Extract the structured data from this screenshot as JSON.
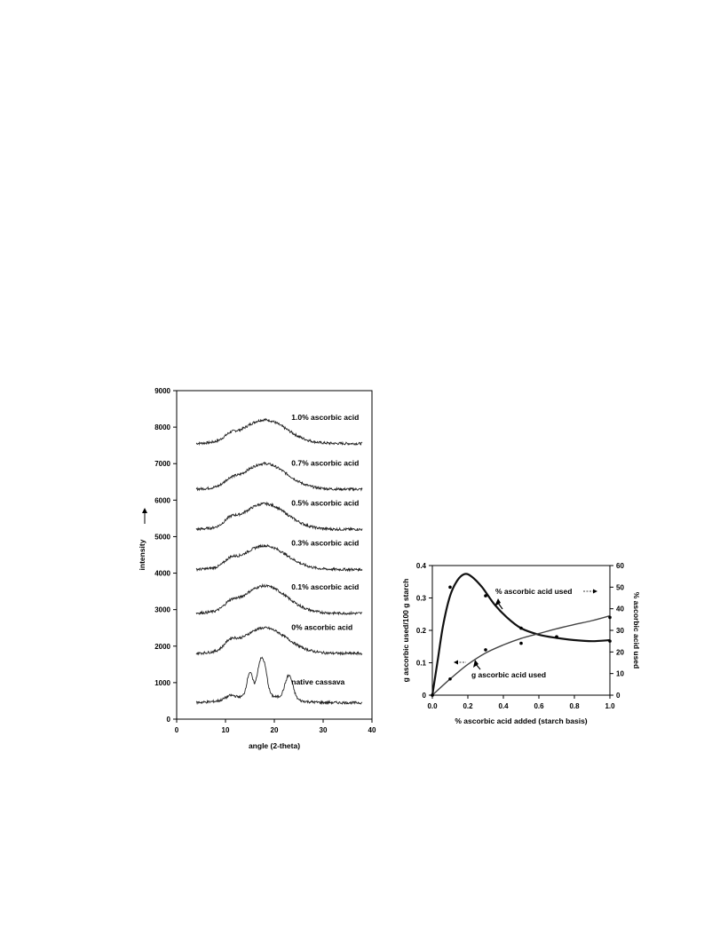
{
  "chart_data": [
    {
      "type": "line",
      "xlabel": "angle (2-theta)",
      "ylabel": "intensity",
      "xlim": [
        0,
        40
      ],
      "ylim": [
        0,
        9000
      ],
      "xticks": [
        "0",
        "10",
        "20",
        "30",
        "40"
      ],
      "yticks": [
        "0",
        "1000",
        "2000",
        "3000",
        "4000",
        "5000",
        "6000",
        "7000",
        "8000",
        "9000"
      ],
      "grid": false,
      "series": [
        {
          "name": "1.0% ascorbic acid",
          "baseline": 7550,
          "peaks": [
            {
              "x": 18,
              "h": 650,
              "w": 4.5
            },
            {
              "x": 11,
              "h": 120,
              "w": 1.2
            }
          ]
        },
        {
          "name": "0.7% ascorbic acid",
          "baseline": 6300,
          "peaks": [
            {
              "x": 18,
              "h": 700,
              "w": 4.5
            },
            {
              "x": 11,
              "h": 120,
              "w": 1.2
            }
          ]
        },
        {
          "name": "0.5% ascorbic acid",
          "baseline": 5200,
          "peaks": [
            {
              "x": 18,
              "h": 700,
              "w": 4.5
            },
            {
              "x": 11,
              "h": 150,
              "w": 1.2
            }
          ]
        },
        {
          "name": "0.3% ascorbic acid",
          "baseline": 4100,
          "peaks": [
            {
              "x": 18,
              "h": 650,
              "w": 4.5
            },
            {
              "x": 11,
              "h": 150,
              "w": 1.2
            }
          ]
        },
        {
          "name": "0.1% ascorbic acid",
          "baseline": 2900,
          "peaks": [
            {
              "x": 18,
              "h": 750,
              "w": 4.5
            },
            {
              "x": 11,
              "h": 150,
              "w": 1.2
            }
          ]
        },
        {
          "name": "0% ascorbic acid",
          "baseline": 1800,
          "peaks": [
            {
              "x": 18,
              "h": 700,
              "w": 4.5
            },
            {
              "x": 11,
              "h": 200,
              "w": 1.2
            }
          ]
        },
        {
          "name": "native cassava",
          "baseline": 450,
          "peaks": [
            {
              "x": 15,
              "h": 650,
              "w": 0.6
            },
            {
              "x": 17,
              "h": 750,
              "w": 0.6
            },
            {
              "x": 18,
              "h": 700,
              "w": 0.6
            },
            {
              "x": 23,
              "h": 650,
              "w": 0.8
            },
            {
              "x": 17,
              "h": 200,
              "w": 5
            },
            {
              "x": 11,
              "h": 100,
              "w": 1.0
            }
          ]
        }
      ]
    },
    {
      "type": "line",
      "xlabel": "% ascorbic acid added (starch basis)",
      "ylabel": "g ascorbic used/100 g starch",
      "y2label": "% ascorbic acid used",
      "xlim": [
        0,
        1.0
      ],
      "ylim": [
        0,
        0.4
      ],
      "y2lim": [
        0,
        60
      ],
      "xticks": [
        "0.0",
        "0.2",
        "0.4",
        "0.6",
        "0.8",
        "1.0"
      ],
      "yticks": [
        "0",
        "0.1",
        "0.2",
        "0.3",
        "0.4"
      ],
      "y2ticks": [
        "0",
        "10",
        "20",
        "30",
        "40",
        "50",
        "60"
      ],
      "grid": false,
      "series": [
        {
          "name": "% ascorbic acid used",
          "axis": "right",
          "points": {
            "x": [
              0,
              0.1,
              0.3,
              0.5,
              0.7,
              1.0
            ],
            "y": [
              0,
              50,
              46,
              31,
              27,
              25
            ]
          },
          "curve": {
            "x": [
              0,
              0.03,
              0.06,
              0.1,
              0.14,
              0.18,
              0.22,
              0.28,
              0.35,
              0.42,
              0.5,
              0.6,
              0.7,
              0.8,
              0.9,
              1.0
            ],
            "y": [
              0,
              16,
              32,
              46,
              53,
              56,
              55,
              50,
              42,
              36,
              31,
              28,
              26.5,
              25.5,
              25,
              25.5
            ]
          }
        },
        {
          "name": "g ascorbic acid used",
          "axis": "left",
          "points": {
            "x": [
              0,
              0.1,
              0.3,
              0.5,
              0.7,
              1.0
            ],
            "y": [
              0,
              0.05,
              0.14,
              0.16,
              0.18,
              0.24
            ]
          },
          "curve": {
            "x": [
              0,
              0.1,
              0.2,
              0.3,
              0.4,
              0.5,
              0.6,
              0.7,
              0.8,
              0.9,
              1.0
            ],
            "y": [
              0,
              0.05,
              0.095,
              0.13,
              0.155,
              0.175,
              0.19,
              0.205,
              0.218,
              0.23,
              0.245
            ]
          }
        }
      ],
      "annotations": [
        "% ascorbic acid used",
        "g ascorbic acid used"
      ]
    }
  ]
}
